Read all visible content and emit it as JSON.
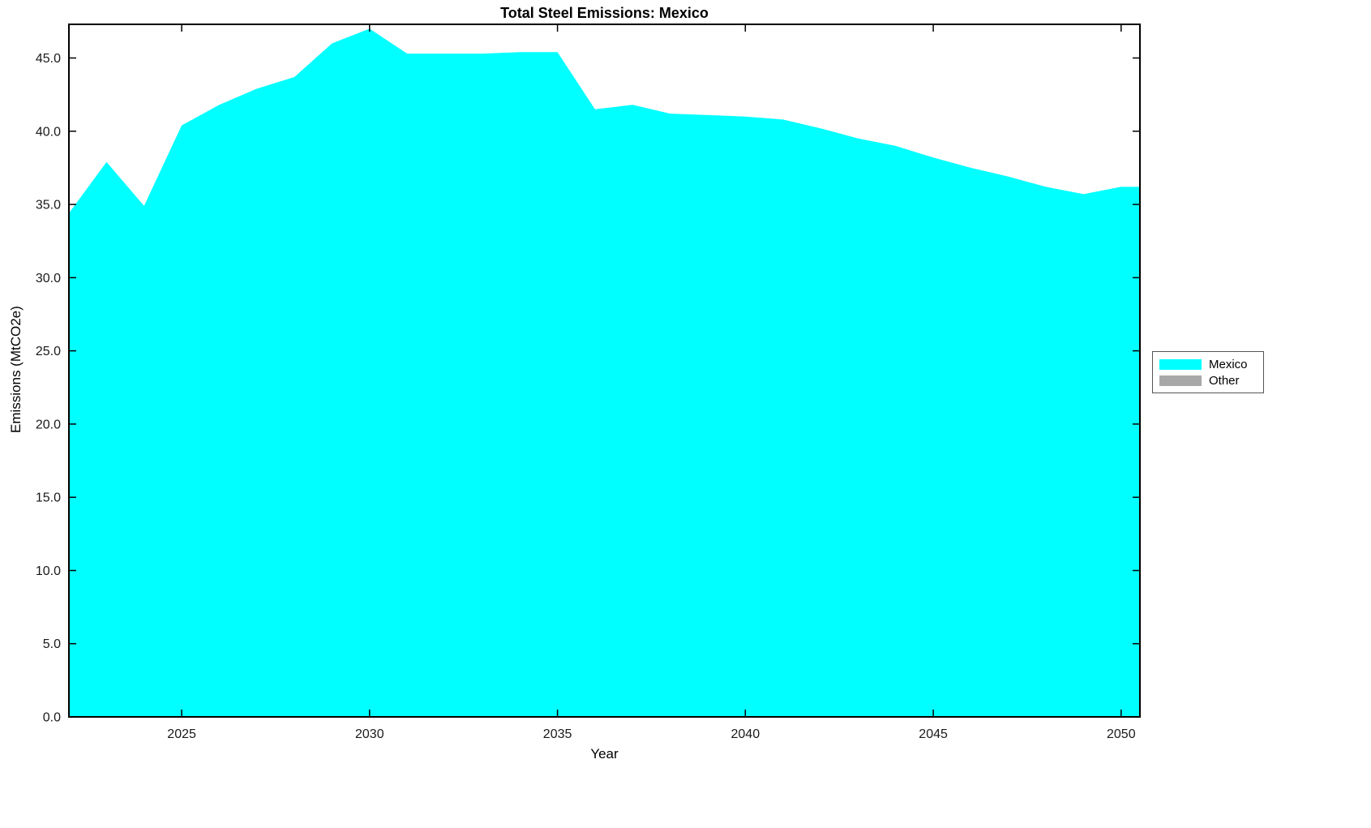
{
  "chart_data": {
    "type": "area",
    "title": "Total Steel Emissions: Mexico",
    "xlabel": "Year",
    "ylabel": "Emissions (MtCO2e)",
    "x": [
      2022,
      2023,
      2024,
      2025,
      2026,
      2027,
      2028,
      2029,
      2030,
      2031,
      2032,
      2033,
      2034,
      2035,
      2036,
      2037,
      2038,
      2039,
      2040,
      2041,
      2042,
      2043,
      2044,
      2045,
      2046,
      2047,
      2048,
      2049,
      2050
    ],
    "series": [
      {
        "name": "Mexico",
        "color": "#00FFFF",
        "values": [
          34.4,
          37.9,
          34.9,
          40.4,
          41.8,
          42.9,
          43.7,
          46.0,
          47.0,
          45.3,
          45.3,
          45.3,
          45.4,
          45.4,
          41.5,
          41.8,
          41.2,
          41.1,
          41.0,
          40.8,
          40.2,
          39.5,
          39.0,
          38.2,
          37.5,
          36.9,
          36.2,
          35.7,
          36.2
        ]
      },
      {
        "name": "Other",
        "color": "#A8A8A8",
        "values": [
          0,
          0,
          0,
          0,
          0,
          0,
          0,
          0,
          0,
          0,
          0,
          0,
          0,
          0,
          0,
          0,
          0,
          0,
          0,
          0,
          0,
          0,
          0,
          0,
          0,
          0,
          0,
          0,
          0
        ]
      }
    ],
    "xlim": [
      2022,
      2050.5
    ],
    "ylim": [
      0,
      47.3
    ],
    "x_ticks": [
      2025,
      2030,
      2035,
      2040,
      2045,
      2050
    ],
    "x_tick_labels": [
      "2025",
      "2030",
      "2035",
      "2040",
      "2045",
      "2050"
    ],
    "y_ticks": [
      0,
      5,
      10,
      15,
      20,
      25,
      30,
      35,
      40,
      45
    ],
    "y_tick_labels": [
      "0.0",
      "5.0",
      "10.0",
      "15.0",
      "20.0",
      "25.0",
      "30.0",
      "35.0",
      "40.0",
      "45.0"
    ],
    "grid": false,
    "legend": {
      "position": "right-outside",
      "items": [
        {
          "label": "Mexico",
          "color": "#00FFFF"
        },
        {
          "label": "Other",
          "color": "#A8A8A8"
        }
      ]
    }
  },
  "colors": {
    "background": "#FFFFFF",
    "axis": "#000000",
    "tick_label": "#1A1A1A",
    "area_primary": "#00FFFF"
  }
}
